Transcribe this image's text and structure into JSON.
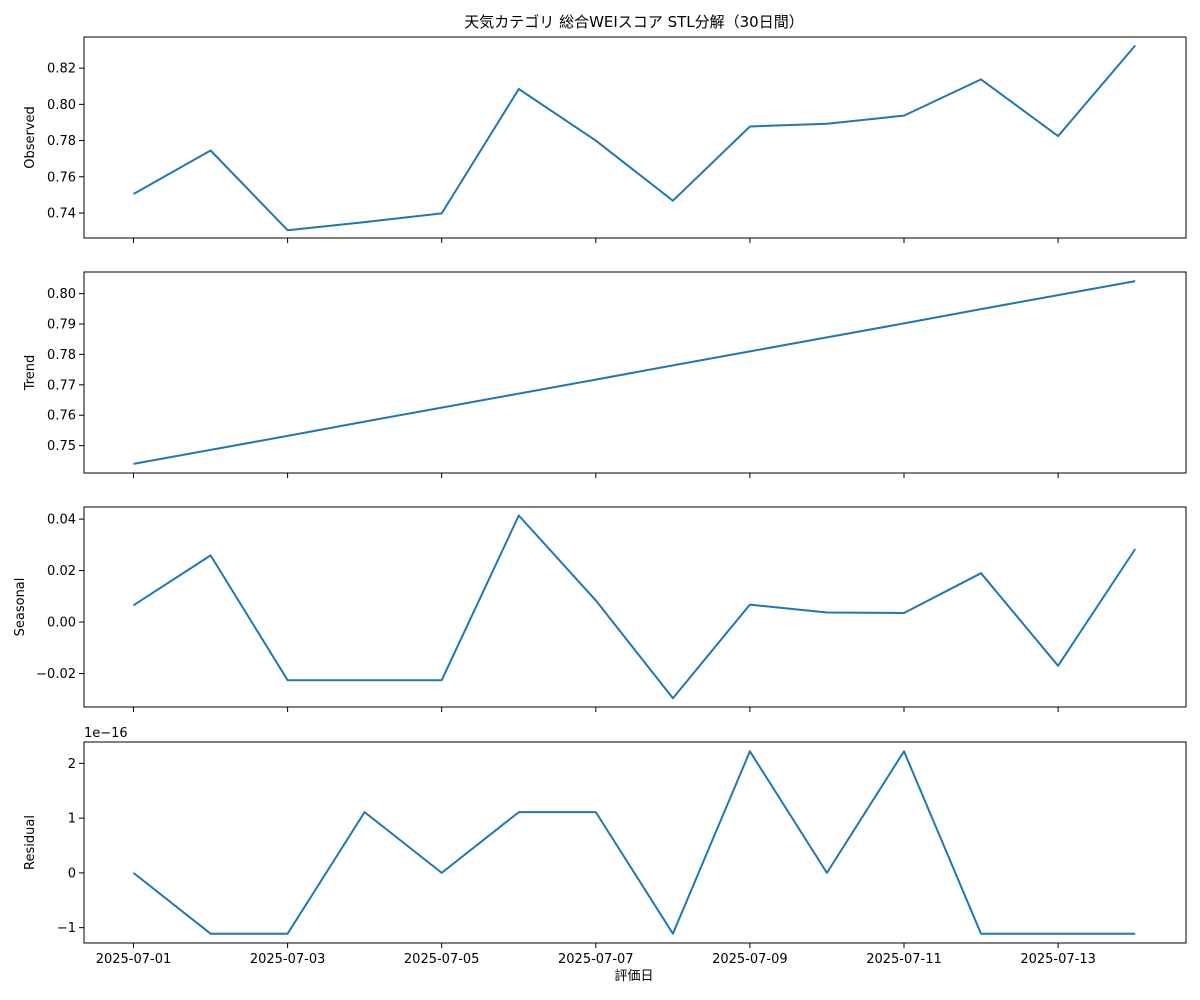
{
  "title": "天気カテゴリ 総合WEIスコア STL分解（30日間）",
  "xlabel": "評価日",
  "line_color": "#1f77b4",
  "x_tick_labels": [
    "2025-07-01",
    "2025-07-03",
    "2025-07-05",
    "2025-07-07",
    "2025-07-09",
    "2025-07-11",
    "2025-07-13"
  ],
  "chart_data": [
    {
      "type": "line",
      "ylabel": "Observed",
      "x": [
        "2025-07-01",
        "2025-07-02",
        "2025-07-03",
        "2025-07-04",
        "2025-07-05",
        "2025-07-06",
        "2025-07-07",
        "2025-07-08",
        "2025-07-09",
        "2025-07-10",
        "2025-07-11",
        "2025-07-12",
        "2025-07-13",
        "2025-07-14"
      ],
      "values": [
        0.7505,
        0.7745,
        0.7305,
        0.735,
        0.7398,
        0.8085,
        0.78,
        0.7468,
        0.7878,
        0.7893,
        0.7938,
        0.8138,
        0.7825,
        0.8325
      ],
      "ylim": [
        0.7262,
        0.8372
      ],
      "yticks": [
        0.74,
        0.76,
        0.78,
        0.8,
        0.82
      ],
      "ytick_labels": [
        "0.74",
        "0.76",
        "0.78",
        "0.80",
        "0.82"
      ]
    },
    {
      "type": "line",
      "ylabel": "Trend",
      "x": [
        "2025-07-01",
        "2025-07-02",
        "2025-07-03",
        "2025-07-04",
        "2025-07-05",
        "2025-07-06",
        "2025-07-07",
        "2025-07-08",
        "2025-07-09",
        "2025-07-10",
        "2025-07-11",
        "2025-07-12",
        "2025-07-13",
        "2025-07-14"
      ],
      "values": [
        0.744,
        0.7486,
        0.7532,
        0.7579,
        0.7625,
        0.7671,
        0.7717,
        0.7764,
        0.781,
        0.7856,
        0.7902,
        0.7949,
        0.7995,
        0.8041
      ],
      "ylim": [
        0.741,
        0.8071
      ],
      "yticks": [
        0.75,
        0.76,
        0.77,
        0.78,
        0.79,
        0.8
      ],
      "ytick_labels": [
        "0.75",
        "0.76",
        "0.77",
        "0.78",
        "0.79",
        "0.80"
      ]
    },
    {
      "type": "line",
      "ylabel": "Seasonal",
      "x": [
        "2025-07-01",
        "2025-07-02",
        "2025-07-03",
        "2025-07-04",
        "2025-07-05",
        "2025-07-06",
        "2025-07-07",
        "2025-07-08",
        "2025-07-09",
        "2025-07-10",
        "2025-07-11",
        "2025-07-12",
        "2025-07-13",
        "2025-07-14"
      ],
      "values": [
        0.0065,
        0.0259,
        -0.0226,
        -0.0226,
        -0.0226,
        0.0414,
        0.0084,
        -0.0296,
        0.0068,
        0.0037,
        0.0035,
        0.019,
        -0.017,
        0.0284
      ],
      "ylim": [
        -0.033,
        0.0447
      ],
      "yticks": [
        -0.02,
        0.0,
        0.02,
        0.04
      ],
      "ytick_labels": [
        "−0.02",
        "0.00",
        "0.02",
        "0.04"
      ]
    },
    {
      "type": "line",
      "ylabel": "Residual",
      "offset_label": "1e−16",
      "x": [
        "2025-07-01",
        "2025-07-02",
        "2025-07-03",
        "2025-07-04",
        "2025-07-05",
        "2025-07-06",
        "2025-07-07",
        "2025-07-08",
        "2025-07-09",
        "2025-07-10",
        "2025-07-11",
        "2025-07-12",
        "2025-07-13",
        "2025-07-14"
      ],
      "values": [
        0,
        -1.11,
        -1.11,
        1.11,
        0,
        1.11,
        1.11,
        -1.11,
        2.22,
        0,
        2.22,
        -1.11,
        -1.11,
        -1.11
      ],
      "ylim": [
        -1.28,
        2.39
      ],
      "yticks": [
        -1,
        0,
        1,
        2
      ],
      "ytick_labels": [
        "−1",
        "0",
        "1",
        "2"
      ]
    }
  ]
}
